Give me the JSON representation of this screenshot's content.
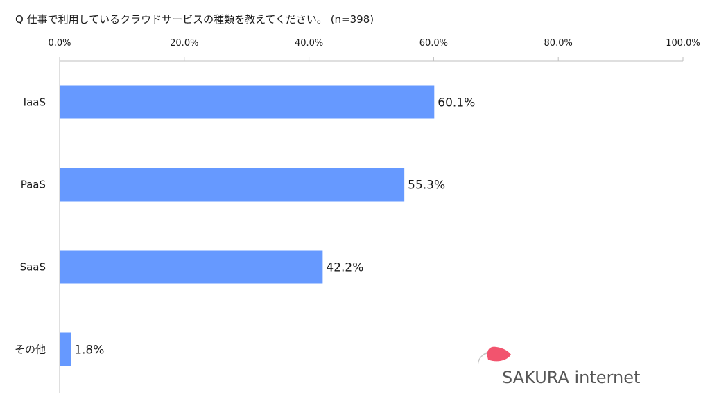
{
  "chart_data": {
    "type": "bar",
    "orientation": "horizontal",
    "title": "Q 仕事で利用しているクラウドサービスの種類を教えてください。 (n=398)",
    "categories": [
      "IaaS",
      "PaaS",
      "SaaS",
      "その他"
    ],
    "values": [
      60.1,
      55.3,
      42.2,
      1.8
    ],
    "value_labels": [
      "60.1%",
      "55.3%",
      "42.2%",
      "1.8%"
    ],
    "xlim": [
      0,
      100
    ],
    "ticks": [
      0,
      20,
      40,
      60,
      80,
      100
    ],
    "tick_labels": [
      "0.0%",
      "20.0%",
      "40.0%",
      "60.0%",
      "80.0%",
      "100.0%"
    ],
    "axis_position": "top",
    "grid": false,
    "bar_color": "#6699ff"
  },
  "logo": {
    "text": "SAKURA internet",
    "accent_color": "#f2546e",
    "gray_color": "#c8c8c8"
  },
  "colors": {
    "axis": "#bfbfbf",
    "text": "#1a1a1a"
  }
}
